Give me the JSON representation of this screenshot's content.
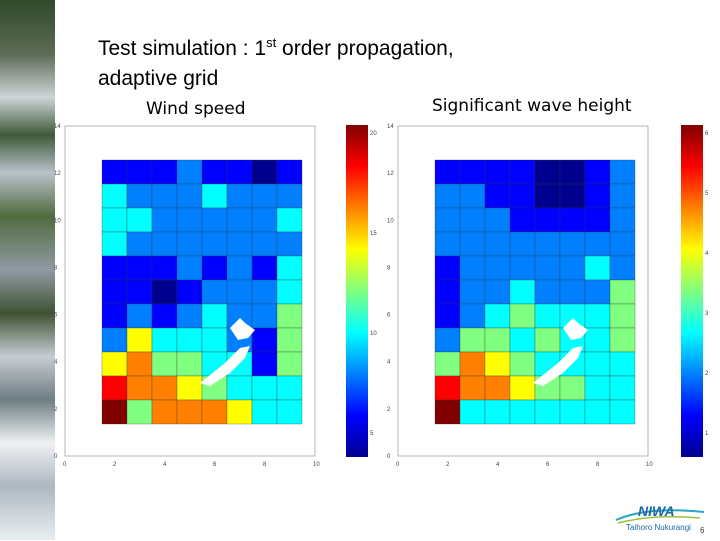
{
  "title_line1": "Test simulation : 1",
  "title_sup": "st",
  "title_line1_tail": " order propagation,",
  "title_line2": "adaptive grid",
  "panels": [
    {
      "label": "Wind speed",
      "x_ticks": [
        "0",
        "2",
        "4",
        "6",
        "8",
        "10"
      ],
      "y_ticks": [
        "0",
        "2",
        "4",
        "6",
        "8",
        "10",
        "12",
        "14"
      ],
      "colorbar_ticks": [
        "20",
        "15",
        "10",
        "5"
      ]
    },
    {
      "label": "Significant wave height",
      "x_ticks": [
        "0",
        "2",
        "4",
        "6",
        "8",
        "10"
      ],
      "y_ticks": [
        "0",
        "2",
        "4",
        "6",
        "8",
        "10",
        "12",
        "14"
      ],
      "colorbar_ticks": [
        "6",
        "5",
        "4",
        "3",
        "2",
        "1"
      ]
    }
  ],
  "colormap": [
    "#00008f",
    "#0000ff",
    "#0080ff",
    "#00ffff",
    "#80ff80",
    "#ffff00",
    "#ff8000",
    "#ff0000",
    "#800000"
  ],
  "logo": {
    "name": "NIWA",
    "subtitle": "Taihoro Nukurangi",
    "page_number": "6"
  }
}
